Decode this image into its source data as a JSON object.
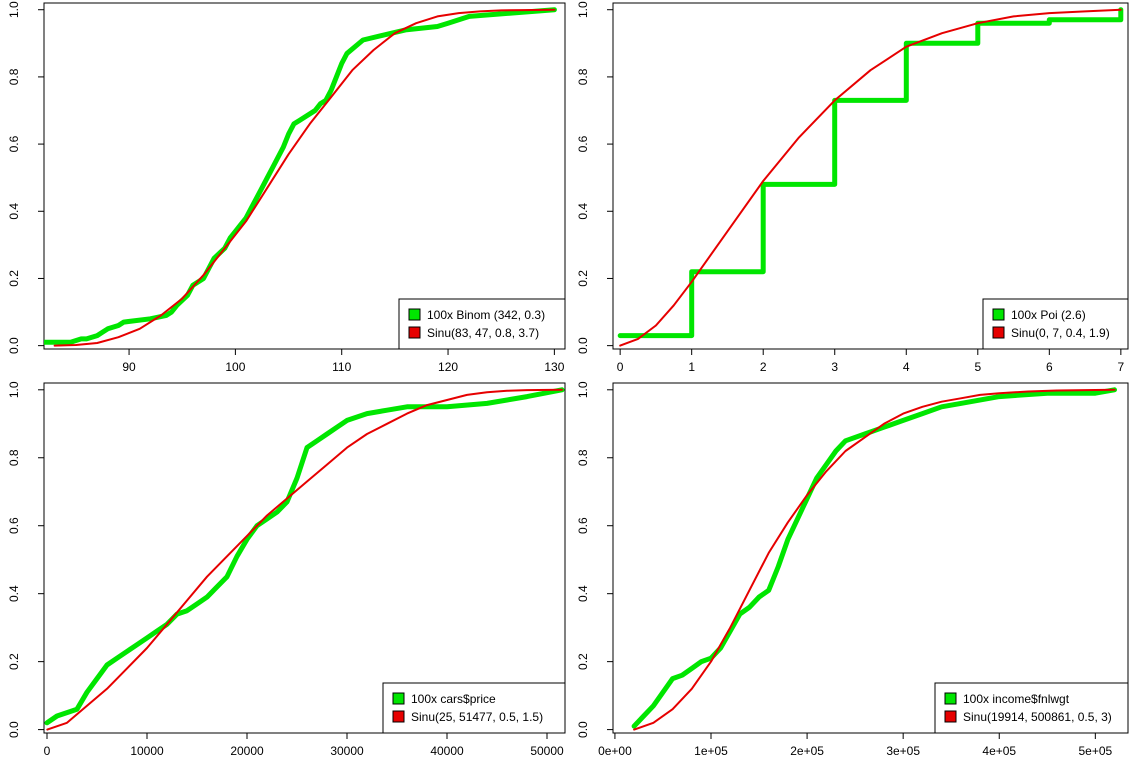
{
  "chart_data": [
    {
      "type": "line",
      "xticks": [
        "90",
        "100",
        "110",
        "120",
        "130"
      ],
      "yticks": [
        "0.0",
        "0.2",
        "0.4",
        "0.6",
        "0.8",
        "1.0"
      ],
      "xlim": [
        82,
        131
      ],
      "ylim": [
        -0.01,
        1.02
      ],
      "legend_position": "bottom-right",
      "colors": {
        "empirical": "#00e600",
        "fitted": "#e60000"
      },
      "series": [
        {
          "name": "100x Binom (342, 0.3)",
          "style": "ecdf",
          "x": [
            82,
            84.5,
            85.5,
            86,
            87,
            87.5,
            88,
            89,
            89.5,
            92,
            93.5,
            94,
            94.5,
            95.5,
            96,
            97,
            97.5,
            98,
            99,
            99.5,
            100,
            100.5,
            101,
            101.5,
            102,
            102.5,
            103,
            103.5,
            104,
            104.5,
            105,
            105.5,
            106,
            107,
            107.5,
            108,
            108.5,
            109,
            109.5,
            110,
            110.5,
            112,
            116,
            119,
            120,
            122,
            130
          ],
          "y": [
            0.01,
            0.01,
            0.02,
            0.02,
            0.03,
            0.04,
            0.05,
            0.06,
            0.07,
            0.08,
            0.09,
            0.1,
            0.12,
            0.15,
            0.18,
            0.2,
            0.23,
            0.26,
            0.29,
            0.32,
            0.34,
            0.36,
            0.38,
            0.41,
            0.44,
            0.47,
            0.5,
            0.53,
            0.56,
            0.59,
            0.63,
            0.66,
            0.67,
            0.69,
            0.7,
            0.72,
            0.73,
            0.76,
            0.8,
            0.84,
            0.87,
            0.91,
            0.94,
            0.95,
            0.96,
            0.98,
            1.0
          ]
        },
        {
          "name": "Sinu(83, 47, 0.8, 3.7)",
          "style": "curve",
          "x": [
            83,
            85,
            87,
            89,
            91,
            93,
            95,
            97,
            99,
            101,
            103,
            105,
            107,
            109,
            111,
            113,
            115,
            117,
            119,
            121,
            123,
            125,
            127,
            130
          ],
          "y": [
            0.0,
            0.002,
            0.008,
            0.025,
            0.05,
            0.09,
            0.14,
            0.21,
            0.29,
            0.37,
            0.47,
            0.57,
            0.66,
            0.74,
            0.82,
            0.88,
            0.93,
            0.96,
            0.98,
            0.99,
            0.995,
            0.998,
            0.999,
            1.0
          ]
        }
      ]
    },
    {
      "type": "line",
      "xticks": [
        "0",
        "1",
        "2",
        "3",
        "4",
        "5",
        "6",
        "7"
      ],
      "yticks": [
        "0.0",
        "0.2",
        "0.4",
        "0.6",
        "0.8",
        "1.0"
      ],
      "xlim": [
        -0.1,
        7.1
      ],
      "ylim": [
        -0.01,
        1.02
      ],
      "legend_position": "bottom-right",
      "colors": {
        "empirical": "#00e600",
        "fitted": "#e60000"
      },
      "series": [
        {
          "name": "100x Poi (2.6)",
          "style": "steps",
          "x": [
            0,
            1,
            2,
            3,
            4,
            5,
            6,
            7
          ],
          "y": [
            0.03,
            0.22,
            0.48,
            0.73,
            0.9,
            0.96,
            0.97,
            1.0
          ]
        },
        {
          "name": "Sinu(0, 7, 0.4, 1.9)",
          "style": "curve",
          "x": [
            0,
            0.25,
            0.5,
            0.75,
            1,
            1.5,
            2,
            2.5,
            3,
            3.5,
            4,
            4.5,
            5,
            5.5,
            6,
            6.5,
            7
          ],
          "y": [
            0.0,
            0.02,
            0.06,
            0.12,
            0.19,
            0.34,
            0.49,
            0.62,
            0.73,
            0.82,
            0.89,
            0.93,
            0.96,
            0.98,
            0.99,
            0.995,
            1.0
          ]
        }
      ]
    },
    {
      "type": "line",
      "xticks": [
        "0",
        "10000",
        "20000",
        "30000",
        "40000",
        "50000"
      ],
      "yticks": [
        "0.0",
        "0.2",
        "0.4",
        "0.6",
        "0.8",
        "1.0"
      ],
      "xlim": [
        -300,
        51800
      ],
      "ylim": [
        -0.01,
        1.02
      ],
      "legend_position": "bottom-right",
      "colors": {
        "empirical": "#00e600",
        "fitted": "#e60000"
      },
      "series": [
        {
          "name": "100x cars$price",
          "style": "ecdf",
          "x": [
            0,
            1000,
            2000,
            3000,
            4000,
            5000,
            6000,
            7000,
            8000,
            9000,
            10000,
            11000,
            12000,
            13000,
            14000,
            15000,
            16000,
            17000,
            18000,
            19000,
            20000,
            21000,
            22000,
            23000,
            24000,
            25000,
            26000,
            27000,
            28000,
            29000,
            30000,
            32000,
            34000,
            36000,
            40000,
            44000,
            48000,
            51500
          ],
          "y": [
            0.02,
            0.04,
            0.05,
            0.06,
            0.11,
            0.15,
            0.19,
            0.21,
            0.23,
            0.25,
            0.27,
            0.29,
            0.31,
            0.34,
            0.35,
            0.37,
            0.39,
            0.42,
            0.45,
            0.51,
            0.56,
            0.6,
            0.62,
            0.64,
            0.67,
            0.74,
            0.83,
            0.85,
            0.87,
            0.89,
            0.91,
            0.93,
            0.94,
            0.95,
            0.95,
            0.96,
            0.98,
            1.0
          ]
        },
        {
          "name": "Sinu(25, 51477, 0.5, 1.5)",
          "style": "curve",
          "x": [
            25,
            2000,
            4000,
            6000,
            8000,
            10000,
            12000,
            14000,
            16000,
            18000,
            20000,
            22000,
            24000,
            26000,
            28000,
            30000,
            32000,
            34000,
            36000,
            38000,
            40000,
            42000,
            44000,
            46000,
            48000,
            51500
          ],
          "y": [
            0.0,
            0.02,
            0.07,
            0.12,
            0.18,
            0.24,
            0.31,
            0.38,
            0.45,
            0.51,
            0.57,
            0.63,
            0.68,
            0.73,
            0.78,
            0.83,
            0.87,
            0.9,
            0.93,
            0.955,
            0.97,
            0.985,
            0.993,
            0.997,
            0.999,
            1.0
          ]
        }
      ]
    },
    {
      "type": "line",
      "xticks": [
        "0e+00",
        "1e+05",
        "2e+05",
        "3e+05",
        "4e+05",
        "5e+05"
      ],
      "yticks": [
        "0.0",
        "0.2",
        "0.4",
        "0.6",
        "0.8",
        "1.0"
      ],
      "xlim": [
        -2000,
        534000
      ],
      "ylim": [
        -0.01,
        1.02
      ],
      "legend_position": "bottom-right",
      "colors": {
        "empirical": "#00e600",
        "fitted": "#e60000"
      },
      "series": [
        {
          "name": "100x income$fnlwgt",
          "style": "ecdf",
          "x": [
            19914,
            30000,
            40000,
            50000,
            60000,
            70000,
            80000,
            90000,
            100000,
            110000,
            120000,
            130000,
            140000,
            150000,
            160000,
            170000,
            180000,
            190000,
            200000,
            210000,
            220000,
            230000,
            240000,
            260000,
            280000,
            300000,
            320000,
            340000,
            360000,
            400000,
            450000,
            500000,
            520000
          ],
          "y": [
            0.01,
            0.04,
            0.07,
            0.11,
            0.15,
            0.16,
            0.18,
            0.2,
            0.21,
            0.24,
            0.29,
            0.34,
            0.36,
            0.39,
            0.41,
            0.48,
            0.56,
            0.62,
            0.68,
            0.74,
            0.78,
            0.82,
            0.85,
            0.87,
            0.89,
            0.91,
            0.93,
            0.95,
            0.96,
            0.98,
            0.99,
            0.99,
            1.0
          ]
        },
        {
          "name": "Sinu(19914, 500861, 0.5, 3)",
          "style": "curve",
          "x": [
            19914,
            40000,
            60000,
            80000,
            100000,
            120000,
            140000,
            160000,
            180000,
            200000,
            220000,
            240000,
            260000,
            280000,
            300000,
            320000,
            340000,
            360000,
            380000,
            400000,
            430000,
            460000,
            490000,
            520000
          ],
          "y": [
            0.0,
            0.02,
            0.06,
            0.12,
            0.2,
            0.3,
            0.41,
            0.52,
            0.61,
            0.69,
            0.76,
            0.82,
            0.86,
            0.9,
            0.93,
            0.95,
            0.965,
            0.975,
            0.985,
            0.99,
            0.995,
            0.998,
            0.999,
            1.0
          ]
        }
      ]
    }
  ]
}
